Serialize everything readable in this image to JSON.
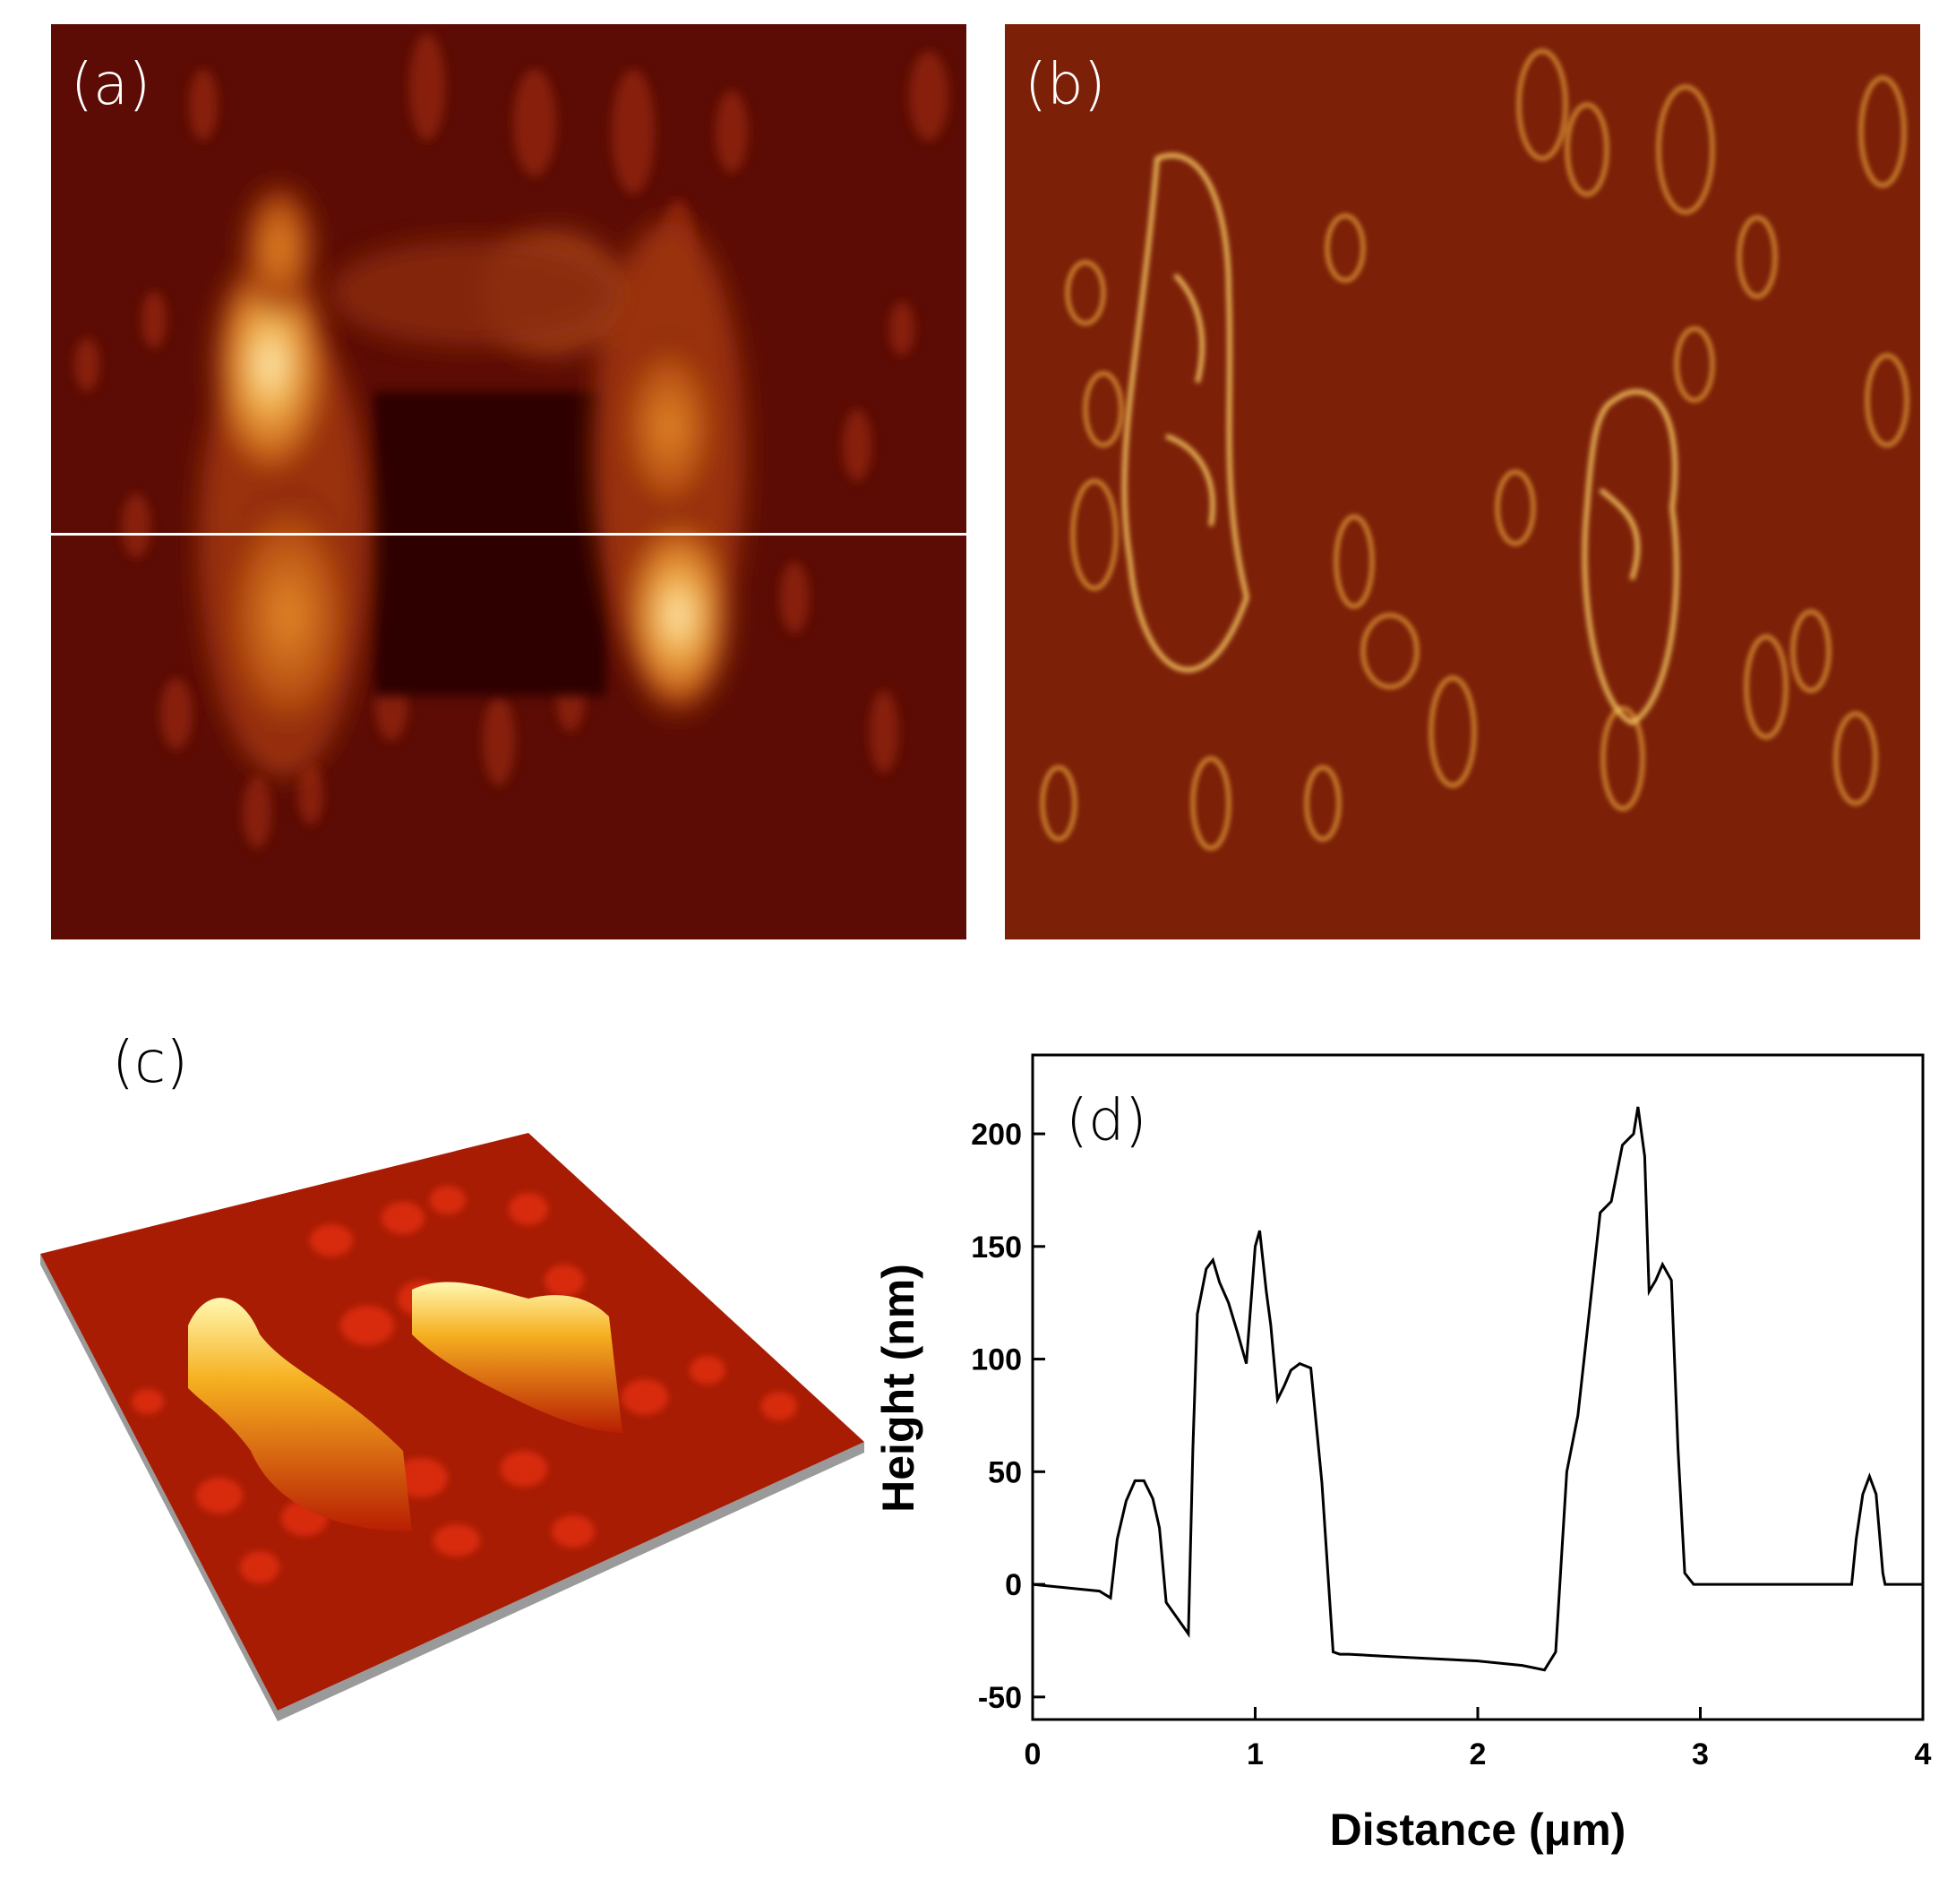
{
  "panels": {
    "a": {
      "label": "(a)"
    },
    "b": {
      "label": "(b)"
    },
    "c": {
      "label": "(c)"
    },
    "d": {
      "label": "(d)"
    }
  },
  "colors": {
    "afm_dark": "#4a0802",
    "afm_mid": "#8a1e08",
    "afm_bright": "#f0a030",
    "afm_peak": "#fff6c8",
    "profile_line": "#ffffff",
    "plot_line": "#000000"
  },
  "chart_data": {
    "type": "line",
    "xlabel": "Distance (μm)",
    "ylabel": "Height (nm)",
    "xlim": [
      0,
      4
    ],
    "ylim": [
      -60,
      235
    ],
    "xticks": [
      0,
      1,
      2,
      3,
      4
    ],
    "yticks": [
      -50,
      0,
      50,
      100,
      150,
      200
    ],
    "grid": false,
    "series": [
      {
        "x": [
          0,
          0.1,
          0.2,
          0.3,
          0.35,
          0.38,
          0.42,
          0.46,
          0.5,
          0.54,
          0.57,
          0.6,
          0.65,
          0.7,
          0.72,
          0.74,
          0.78,
          0.81,
          0.84,
          0.88,
          0.92,
          0.96,
          1.0,
          1.02,
          1.05,
          1.07,
          1.1,
          1.13,
          1.16,
          1.2,
          1.25,
          1.3,
          1.35,
          1.38,
          1.42,
          1.6,
          1.8,
          2.0,
          2.2,
          2.3,
          2.35,
          2.4,
          2.45,
          2.5,
          2.55,
          2.6,
          2.65,
          2.7,
          2.72,
          2.75,
          2.77,
          2.8,
          2.83,
          2.87,
          2.9,
          2.93,
          2.97,
          3.0,
          3.1,
          3.3,
          3.5,
          3.68,
          3.7,
          3.73,
          3.76,
          3.79,
          3.82,
          3.83,
          3.9,
          4.0
        ],
        "y": [
          0,
          -1,
          -2,
          -3,
          -6,
          20,
          37,
          46,
          46,
          38,
          25,
          -8,
          -15,
          -22,
          60,
          120,
          140,
          144,
          134,
          125,
          112,
          98,
          150,
          157,
          130,
          115,
          82,
          88,
          95,
          98,
          96,
          45,
          -30,
          -31,
          -31,
          -32,
          -33,
          -34,
          -36,
          -38,
          -30,
          50,
          75,
          120,
          165,
          170,
          195,
          200,
          212,
          190,
          130,
          135,
          142,
          135,
          60,
          5,
          0,
          0,
          0,
          0,
          0,
          0,
          20,
          40,
          48,
          40,
          5,
          0,
          0,
          0
        ]
      }
    ]
  }
}
